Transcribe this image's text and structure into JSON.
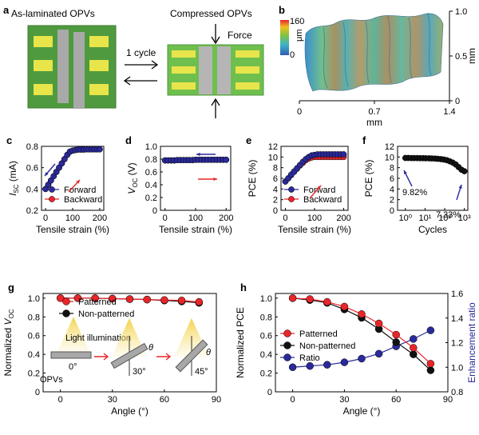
{
  "panels": {
    "a": {
      "letter": "a",
      "left_title": "As-laminated OPVs",
      "right_title": "Compressed OPVs",
      "arrow_label": "1 cycle",
      "force_label": "Force"
    },
    "b": {
      "letter": "b",
      "colorbar_max": "160",
      "colorbar_min": "0",
      "colorbar_unit": "μm",
      "x_ticks": [
        "0",
        "0.7",
        "1.4"
      ],
      "x_label": "mm",
      "y_ticks": [
        "0",
        "0.5",
        "1.0"
      ],
      "y_label": "mm"
    },
    "g_inset": {
      "light_label": "Light illumination",
      "opv_label": "OPVs",
      "angle_0": "0°",
      "angle_30": "30°",
      "angle_45": "45°",
      "theta": "θ"
    },
    "f_annotations": {
      "start": "9.82%",
      "end": "7.33%"
    }
  },
  "colors": {
    "forward": "#2a2a9a",
    "backward": "#e8262a",
    "patterned": "#e8262a",
    "non_patterned": "#111111",
    "ratio": "#2a2a9a",
    "cell_green": "#5aa84a",
    "electrode_yellow": "#e7e54a",
    "electrode_gray": "#a7a7a7"
  },
  "chart_data": [
    {
      "id": "c",
      "letter": "c",
      "type": "line",
      "xlabel": "Tensile strain (%)",
      "ylabel_main": "I",
      "ylabel_sub": "SC",
      "ylabel_unit": " (mA)",
      "xlim": [
        -15,
        215
      ],
      "ylim": [
        0.2,
        0.8
      ],
      "xticks": [
        0,
        100,
        200
      ],
      "yticks": [
        0.2,
        0.4,
        0.6,
        0.8
      ],
      "legend": [
        "Forward",
        "Backward"
      ],
      "legend_position": "bottom-right",
      "x": [
        0,
        10,
        20,
        30,
        40,
        50,
        60,
        70,
        80,
        90,
        100,
        110,
        120,
        130,
        140,
        150,
        160,
        170,
        180,
        190,
        200
      ],
      "series": [
        {
          "name": "Forward",
          "values": [
            0.4,
            0.44,
            0.48,
            0.52,
            0.56,
            0.6,
            0.64,
            0.68,
            0.72,
            0.75,
            0.76,
            0.765,
            0.77,
            0.77,
            0.77,
            0.772,
            0.772,
            0.772,
            0.772,
            0.772,
            0.772
          ]
        },
        {
          "name": "Backward",
          "values": [
            0.4,
            0.44,
            0.48,
            0.52,
            0.56,
            0.6,
            0.64,
            0.68,
            0.72,
            0.75,
            0.76,
            0.765,
            0.77,
            0.77,
            0.77,
            0.772,
            0.772,
            0.772,
            0.772,
            0.772,
            0.772
          ]
        }
      ]
    },
    {
      "id": "d",
      "letter": "d",
      "type": "line",
      "xlabel": "Tensile strain (%)",
      "ylabel_main": "V",
      "ylabel_sub": "OC",
      "ylabel_unit": " (V)",
      "xlim": [
        -15,
        215
      ],
      "ylim": [
        0,
        1.0
      ],
      "xticks": [
        0,
        100,
        200
      ],
      "yticks": [
        0,
        0.2,
        0.4,
        0.6,
        0.8,
        1.0
      ],
      "x": [
        0,
        10,
        20,
        30,
        40,
        50,
        60,
        70,
        80,
        90,
        100,
        110,
        120,
        130,
        140,
        150,
        160,
        170,
        180,
        190,
        200
      ],
      "series": [
        {
          "name": "Forward",
          "values": [
            0.78,
            0.78,
            0.78,
            0.78,
            0.785,
            0.785,
            0.785,
            0.785,
            0.785,
            0.785,
            0.79,
            0.79,
            0.79,
            0.79,
            0.79,
            0.79,
            0.79,
            0.79,
            0.79,
            0.79,
            0.79
          ]
        },
        {
          "name": "Backward",
          "values": [
            0.78,
            0.78,
            0.78,
            0.78,
            0.785,
            0.785,
            0.785,
            0.785,
            0.785,
            0.785,
            0.79,
            0.79,
            0.79,
            0.79,
            0.79,
            0.79,
            0.79,
            0.79,
            0.79,
            0.79,
            0.79
          ]
        }
      ]
    },
    {
      "id": "e",
      "letter": "e",
      "type": "line",
      "xlabel": "Tensile strain (%)",
      "ylabel_main": "PCE (%)",
      "ylabel_sub": "",
      "ylabel_unit": "",
      "xlim": [
        -15,
        215
      ],
      "ylim": [
        0,
        12
      ],
      "xticks": [
        0,
        100,
        200
      ],
      "yticks": [
        0,
        2,
        4,
        6,
        8,
        10,
        12
      ],
      "legend": [
        "Forward",
        "Backward"
      ],
      "legend_position": "bottom-right",
      "x": [
        0,
        10,
        20,
        30,
        40,
        50,
        60,
        70,
        80,
        90,
        100,
        110,
        120,
        130,
        140,
        150,
        160,
        170,
        180,
        190,
        200
      ],
      "series": [
        {
          "name": "Forward",
          "values": [
            5.4,
            6.0,
            6.7,
            7.3,
            7.9,
            8.5,
            9.1,
            9.6,
            10.0,
            10.3,
            10.4,
            10.5,
            10.5,
            10.5,
            10.5,
            10.5,
            10.5,
            10.5,
            10.5,
            10.5,
            10.5
          ]
        },
        {
          "name": "Backward",
          "values": [
            5.4,
            6.0,
            6.6,
            7.2,
            7.8,
            8.4,
            8.9,
            9.4,
            9.7,
            9.9,
            10.0,
            10.0,
            10.0,
            10.0,
            10.0,
            10.0,
            10.0,
            10.0,
            10.0,
            10.0,
            10.0
          ]
        }
      ]
    },
    {
      "id": "f",
      "letter": "f",
      "type": "scatter",
      "xlabel": "Cycles",
      "ylabel_main": "PCE (%)",
      "ylabel_sub": "",
      "ylabel_unit": "",
      "xscale": "log",
      "xlim": [
        0.4,
        1500
      ],
      "ylim": [
        0,
        12
      ],
      "xticks": [
        1,
        10,
        100,
        1000
      ],
      "xticklabels": [
        "10⁰",
        "10¹",
        "10²",
        "10³"
      ],
      "yticks": [
        0,
        2,
        4,
        6,
        8,
        10,
        12
      ],
      "x": [
        1,
        1.4,
        2,
        2.8,
        4,
        5.6,
        8,
        11,
        16,
        22,
        32,
        45,
        64,
        90,
        128,
        180,
        256,
        362,
        512,
        724,
        1000
      ],
      "series": [
        {
          "name": "",
          "values": [
            9.82,
            9.82,
            9.8,
            9.8,
            9.8,
            9.78,
            9.78,
            9.76,
            9.75,
            9.73,
            9.7,
            9.66,
            9.6,
            9.52,
            9.4,
            9.2,
            8.95,
            8.6,
            8.1,
            7.6,
            7.33
          ]
        }
      ]
    },
    {
      "id": "g",
      "letter": "g",
      "type": "line",
      "xlabel": "Angle (°)",
      "ylabel_main": "Normalized V",
      "ylabel_sub": "OC",
      "ylabel_unit": "",
      "xlim": [
        -10,
        90
      ],
      "ylim": [
        0,
        1.05
      ],
      "xticks": [
        0,
        30,
        60,
        90
      ],
      "yticks": [
        0,
        0.2,
        0.4,
        0.6,
        0.8,
        1.0
      ],
      "legend": [
        "Patterned",
        "Non-patterned"
      ],
      "legend_position": "top-center",
      "x": [
        0,
        10,
        20,
        30,
        40,
        50,
        60,
        70,
        80
      ],
      "series": [
        {
          "name": "Patterned",
          "values": [
            1.0,
            1.0,
            1.0,
            0.995,
            0.99,
            0.985,
            0.98,
            0.975,
            0.96
          ]
        },
        {
          "name": "Non-patterned",
          "values": [
            1.0,
            1.0,
            1.0,
            0.995,
            0.99,
            0.985,
            0.975,
            0.965,
            0.95
          ]
        }
      ]
    },
    {
      "id": "h",
      "letter": "h",
      "type": "line",
      "xlabel": "Angle (°)",
      "ylabel_main": "Normalized PCE",
      "ylabel_sub": "",
      "ylabel_unit": "",
      "ylabel_right": "Enhancement ratio",
      "xlim": [
        -10,
        90
      ],
      "ylim": [
        0,
        1.05
      ],
      "ylim_right": [
        0.8,
        1.6
      ],
      "xticks": [
        0,
        30,
        60,
        90
      ],
      "yticks": [
        0,
        0.2,
        0.4,
        0.6,
        0.8,
        1.0
      ],
      "yticks_right": [
        0.8,
        1.0,
        1.2,
        1.4,
        1.6
      ],
      "legend": [
        "Patterned",
        "Non-patterned",
        "Ratio"
      ],
      "legend_position": "center-left",
      "x": [
        0,
        10,
        20,
        30,
        40,
        50,
        60,
        70,
        80
      ],
      "series": [
        {
          "name": "Patterned",
          "values": [
            1.0,
            0.99,
            0.96,
            0.91,
            0.83,
            0.73,
            0.61,
            0.47,
            0.3
          ]
        },
        {
          "name": "Non-patterned",
          "values": [
            1.0,
            0.98,
            0.95,
            0.88,
            0.79,
            0.67,
            0.53,
            0.4,
            0.23
          ]
        },
        {
          "name": "Ratio",
          "axis": "right",
          "values": [
            1.0,
            1.01,
            1.02,
            1.04,
            1.07,
            1.11,
            1.17,
            1.23,
            1.3
          ]
        }
      ]
    }
  ]
}
